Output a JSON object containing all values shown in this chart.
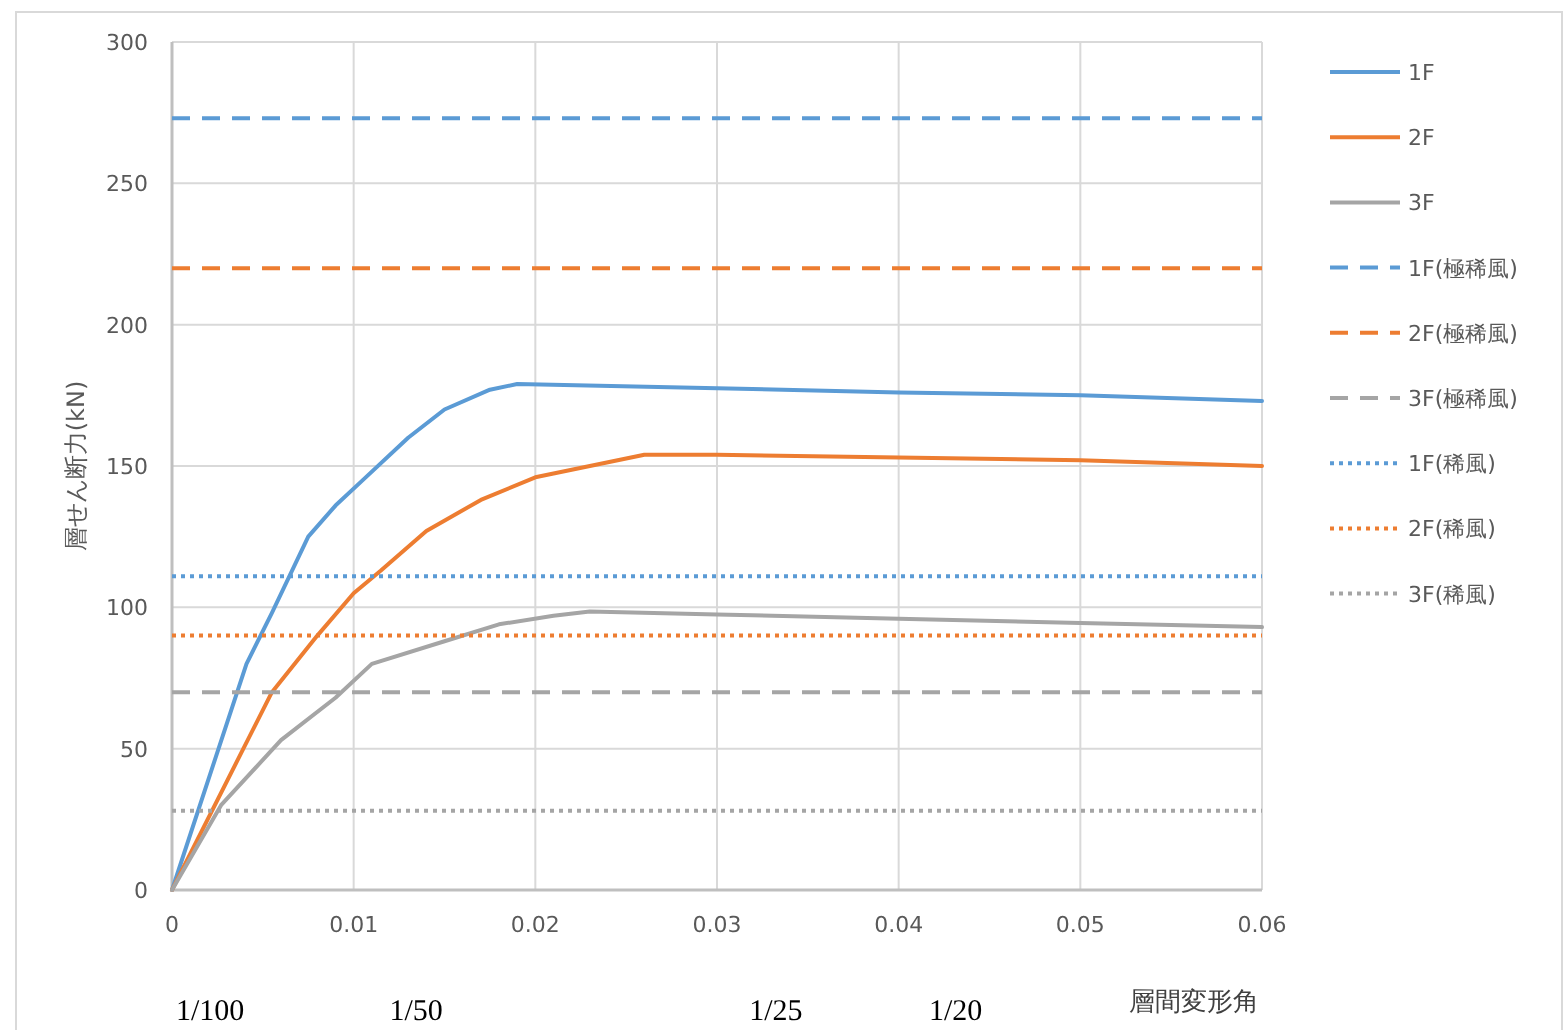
{
  "chart_data": {
    "type": "line",
    "xlabel": "層間変形角",
    "ylabel": "層せん断力(kN)",
    "xlim": [
      0,
      0.06
    ],
    "xticks": [
      0,
      0.01,
      0.02,
      0.03,
      0.04,
      0.05,
      0.06
    ],
    "ylim": [
      0,
      300
    ],
    "yticks": [
      0,
      50,
      100,
      150,
      200,
      250,
      300
    ],
    "grid": true,
    "legend": "right",
    "marker": "none",
    "annotations": [
      "1/100",
      "1/50",
      "1/25",
      "1/20"
    ],
    "series": [
      {
        "name": "1F",
        "color": "#5b9bd5",
        "line_style": "solid",
        "x": [
          0,
          0.0041,
          0.0055,
          0.0075,
          0.009,
          0.0105,
          0.013,
          0.015,
          0.0175,
          0.019,
          0.03,
          0.04,
          0.05,
          0.06
        ],
        "values": [
          0,
          80,
          98,
          125,
          136,
          145,
          160,
          170,
          177,
          179,
          177.5,
          176,
          175,
          173
        ]
      },
      {
        "name": "2F",
        "color": "#ed7d31",
        "line_style": "solid",
        "x": [
          0,
          0.0055,
          0.008,
          0.01,
          0.0115,
          0.014,
          0.017,
          0.02,
          0.023,
          0.026,
          0.03,
          0.04,
          0.05,
          0.06
        ],
        "values": [
          0,
          70,
          90,
          105,
          113,
          127,
          138,
          146,
          150,
          154,
          154,
          153,
          152,
          150
        ]
      },
      {
        "name": "3F",
        "color": "#a5a5a5",
        "line_style": "solid",
        "x": [
          0,
          0.0027,
          0.006,
          0.009,
          0.011,
          0.015,
          0.018,
          0.021,
          0.023,
          0.03,
          0.04,
          0.05,
          0.06
        ],
        "values": [
          0,
          30,
          53,
          68,
          80,
          88,
          94,
          97,
          98.5,
          97.5,
          96,
          94.5,
          93
        ]
      },
      {
        "name": "1F(極稀風)",
        "color": "#5b9bd5",
        "line_style": "dashed",
        "x": [
          0,
          0.06
        ],
        "values": [
          273,
          273
        ]
      },
      {
        "name": "2F(極稀風)",
        "color": "#ed7d31",
        "line_style": "dashed",
        "x": [
          0,
          0.06
        ],
        "values": [
          220,
          220
        ]
      },
      {
        "name": "3F(極稀風)",
        "color": "#a5a5a5",
        "line_style": "dashed",
        "x": [
          0,
          0.06
        ],
        "values": [
          70,
          70
        ]
      },
      {
        "name": "1F(稀風)",
        "color": "#5b9bd5",
        "line_style": "dotted",
        "x": [
          0,
          0.06
        ],
        "values": [
          111,
          111
        ]
      },
      {
        "name": "2F(稀風)",
        "color": "#ed7d31",
        "line_style": "dotted",
        "x": [
          0,
          0.06
        ],
        "values": [
          90,
          90
        ]
      },
      {
        "name": "3F(稀風)",
        "color": "#a5a5a5",
        "line_style": "dotted",
        "x": [
          0,
          0.06
        ],
        "values": [
          28,
          28
        ]
      }
    ]
  }
}
